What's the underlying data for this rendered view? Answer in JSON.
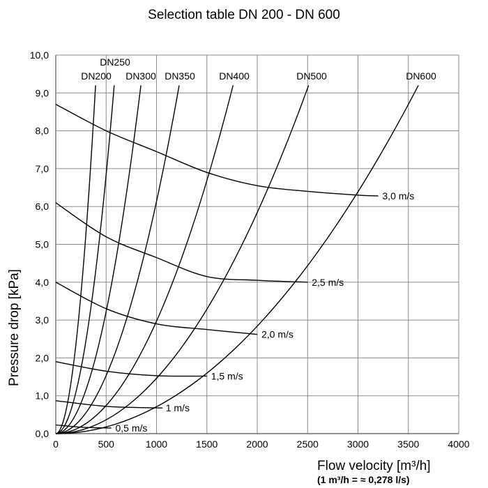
{
  "chart_data": {
    "type": "line",
    "title": "Selection table DN 200 - DN 600",
    "xlabel": "Flow velocity [m³/h]",
    "xlabel_note": "(1 m³/h = ≈ 0,278 l/s)",
    "ylabel": "Pressure drop [kPa]",
    "xlim": [
      0,
      4000
    ],
    "ylim": [
      0,
      10
    ],
    "grid": true,
    "x_ticks": [
      0,
      500,
      1000,
      1500,
      2000,
      2500,
      3000,
      3500,
      4000
    ],
    "x_tick_labels": [
      "0",
      "500",
      "1000",
      "1500",
      "2000",
      "2500",
      "3000",
      "3500",
      "4000"
    ],
    "y_ticks": [
      0,
      1,
      2,
      3,
      4,
      5,
      6,
      7,
      8,
      9,
      10
    ],
    "y_tick_labels": [
      "0,0",
      "1,0",
      "2,0",
      "3,0",
      "4,0",
      "5,0",
      "6,0",
      "7,0",
      "8,0",
      "9,0",
      "10,0"
    ],
    "pipe_series": [
      {
        "name": "DN200",
        "x": [
          0,
          100,
          200,
          300,
          395
        ],
        "y": [
          0,
          0.59,
          2.36,
          5.3,
          9.2
        ]
      },
      {
        "name": "DN250",
        "x": [
          0,
          150,
          300,
          450,
          580
        ],
        "y": [
          0,
          0.62,
          2.46,
          5.54,
          9.2
        ]
      },
      {
        "name": "DN300",
        "x": [
          0,
          200,
          400,
          600,
          845
        ],
        "y": [
          0,
          0.52,
          2.06,
          4.64,
          9.2
        ]
      },
      {
        "name": "DN350",
        "x": [
          0,
          300,
          600,
          900,
          1225
        ],
        "y": [
          0,
          0.55,
          2.21,
          4.96,
          9.2
        ]
      },
      {
        "name": "DN400",
        "x": [
          0,
          400,
          800,
          1200,
          1500,
          1760
        ],
        "y": [
          0,
          0.48,
          1.9,
          4.28,
          6.68,
          9.2
        ]
      },
      {
        "name": "DN500",
        "x": [
          0,
          500,
          1000,
          1500,
          2000,
          2510
        ],
        "y": [
          0,
          0.37,
          1.46,
          3.29,
          5.84,
          9.2
        ]
      },
      {
        "name": "DN600",
        "x": [
          0,
          1000,
          1500,
          2000,
          2500,
          3000,
          3600
        ],
        "y": [
          0,
          0.71,
          1.6,
          2.84,
          4.44,
          6.39,
          9.2
        ]
      }
    ],
    "velocity_series": [
      {
        "name": "3,0 m/s",
        "x": [
          0,
          500,
          1000,
          1500,
          2000,
          2500,
          3000,
          3200
        ],
        "y": [
          8.7,
          8.0,
          7.45,
          6.9,
          6.55,
          6.4,
          6.3,
          6.28
        ]
      },
      {
        "name": "2,5 m/s",
        "x": [
          0,
          500,
          1000,
          1500,
          2000,
          2500
        ],
        "y": [
          6.1,
          5.2,
          4.65,
          4.15,
          4.05,
          4.0
        ]
      },
      {
        "name": "2,0 m/s",
        "x": [
          0,
          500,
          1000,
          1500,
          2000
        ],
        "y": [
          4.0,
          3.3,
          2.9,
          2.75,
          2.62
        ]
      },
      {
        "name": "1,5 m/s",
        "x": [
          0,
          500,
          1000,
          1500
        ],
        "y": [
          1.9,
          1.65,
          1.53,
          1.52
        ]
      },
      {
        "name": "1 m/s",
        "x": [
          0,
          500,
          1000,
          1050
        ],
        "y": [
          0.87,
          0.72,
          0.68,
          0.68
        ]
      },
      {
        "name": "0,5 m/s",
        "x": [
          0,
          250,
          500,
          550
        ],
        "y": [
          0.23,
          0.17,
          0.15,
          0.15
        ]
      }
    ]
  }
}
